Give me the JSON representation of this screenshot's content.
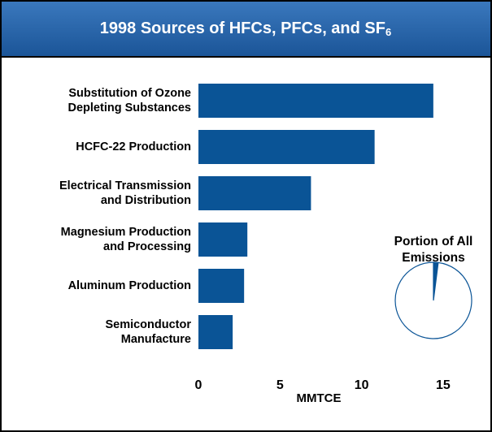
{
  "chart_data": [
    {
      "type": "bar",
      "orientation": "horizontal",
      "title": "1998 Sources of HFCs, PFCs, and SF",
      "title_subscript": "6",
      "categories": [
        [
          "Substitution of Ozone",
          "Depleting Substances"
        ],
        [
          "HCFC-22 Production"
        ],
        [
          "Electrical Transmission",
          "and Distribution"
        ],
        [
          "Magnesium Production",
          "and Processing"
        ],
        [
          "Aluminum Production"
        ],
        [
          "Semiconductor",
          "Manufacture"
        ]
      ],
      "values": [
        14.4,
        10.8,
        6.9,
        3.0,
        2.8,
        2.1
      ],
      "color": "#0a5496",
      "xlabel": "MMTCE",
      "xlim": [
        0,
        17
      ],
      "xticks": [
        0,
        5,
        10,
        15
      ]
    },
    {
      "type": "pie",
      "title": [
        "Portion of All",
        "Emissions"
      ],
      "values": [
        2,
        98
      ],
      "colors": [
        "#0a5496",
        "#ffffff"
      ],
      "edge_color": "#0a5496"
    }
  ]
}
